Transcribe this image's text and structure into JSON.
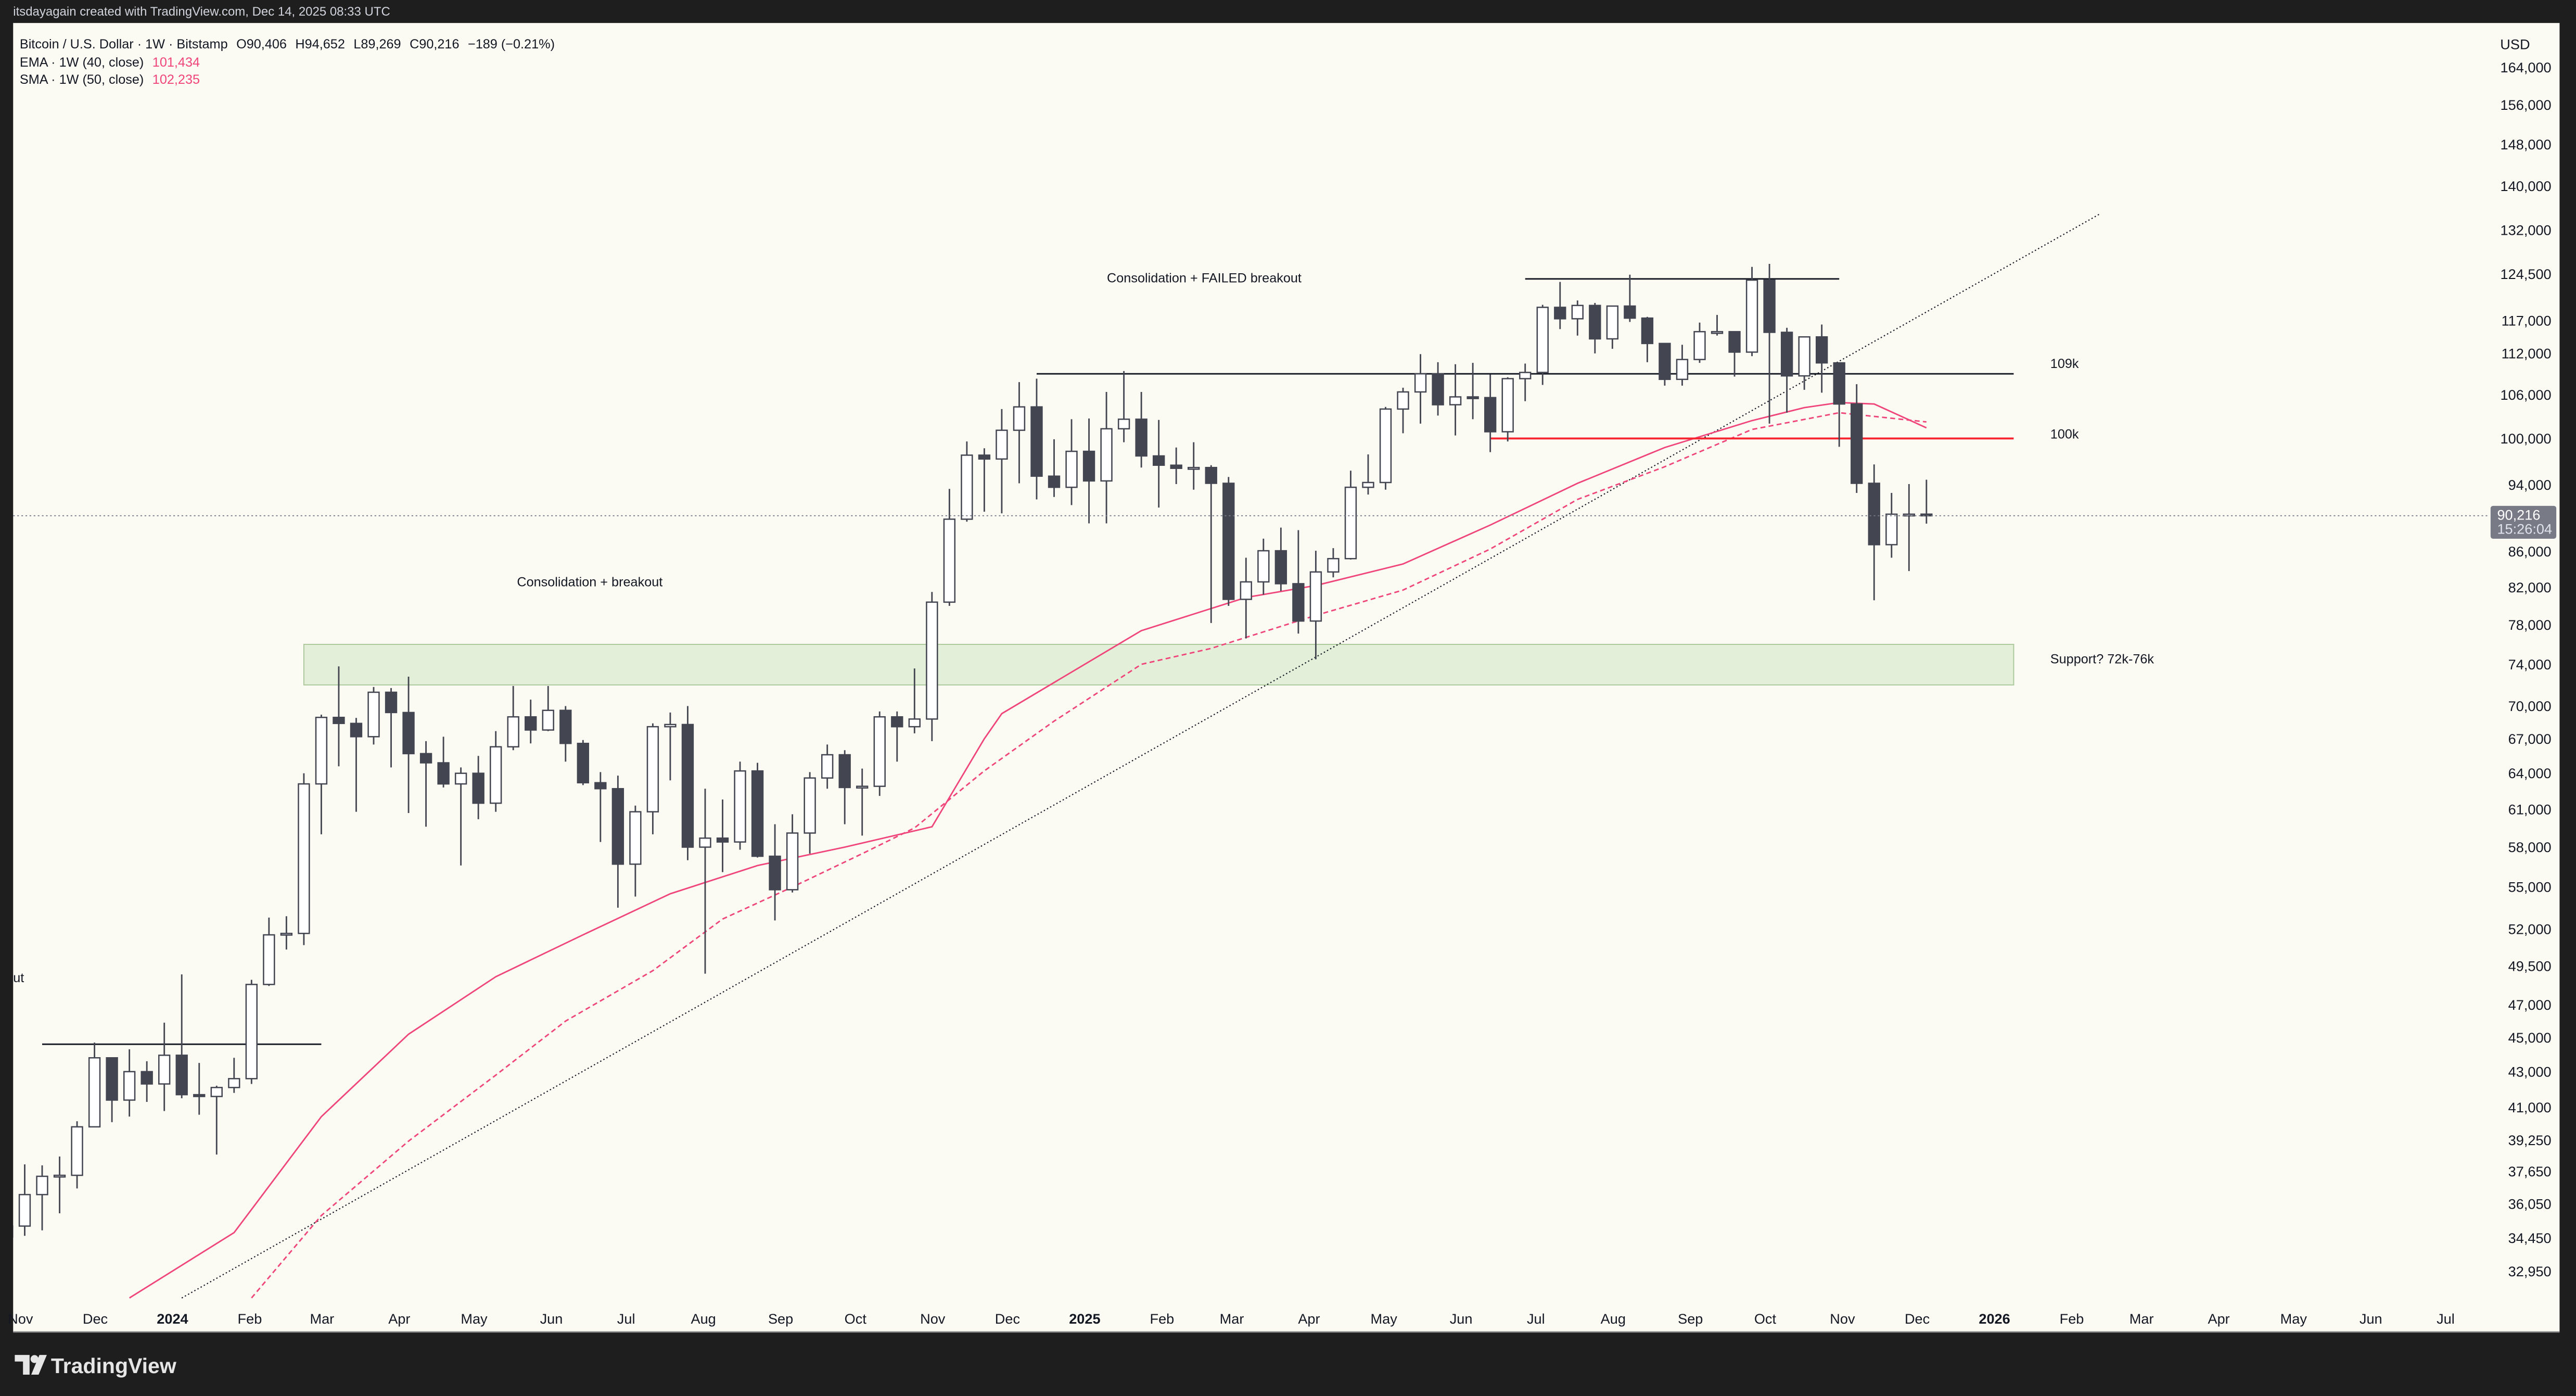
{
  "topbar": {
    "credit": "itsdayagain created with TradingView.com, Dec 14, 2025 08:33 UTC"
  },
  "legend": {
    "symbol": "Bitcoin / U.S. Dollar · 1W · Bitstamp",
    "open": "O90,406",
    "high": "H94,652",
    "low": "L89,269",
    "close": "C90,216",
    "change": "−189 (−0.21%)",
    "ema_label": "EMA · 1W (40, close)",
    "ema_value": "101,434",
    "sma_label": "SMA · 1W (50, close)",
    "sma_value": "102,235"
  },
  "price_axis": {
    "currency": "USD",
    "scale": "log",
    "ticks": [
      "164,000",
      "156,000",
      "148,000",
      "140,000",
      "132,000",
      "124,500",
      "117,000",
      "112,000",
      "106,000",
      "100,000",
      "94,000",
      "86,000",
      "82,000",
      "78,000",
      "74,000",
      "70,000",
      "67,000",
      "64,000",
      "61,000",
      "58,000",
      "55,000",
      "52,000",
      "49,500",
      "47,000",
      "45,000",
      "43,000",
      "41,000",
      "39,250",
      "37,650",
      "36,050",
      "34,450",
      "32,950"
    ],
    "last_price": "90,216",
    "countdown": "15:26:04"
  },
  "time_axis": [
    {
      "label": "Nov",
      "date": "2023-11-01"
    },
    {
      "label": "Dec",
      "date": "2023-12-01"
    },
    {
      "label": "2024",
      "date": "2024-01-01",
      "bold": true
    },
    {
      "label": "Feb",
      "date": "2024-02-01"
    },
    {
      "label": "Mar",
      "date": "2024-03-01"
    },
    {
      "label": "Apr",
      "date": "2024-04-01"
    },
    {
      "label": "May",
      "date": "2024-05-01"
    },
    {
      "label": "Jun",
      "date": "2024-06-01"
    },
    {
      "label": "Jul",
      "date": "2024-07-01"
    },
    {
      "label": "Aug",
      "date": "2024-08-01"
    },
    {
      "label": "Sep",
      "date": "2024-09-01"
    },
    {
      "label": "Oct",
      "date": "2024-10-01"
    },
    {
      "label": "Nov",
      "date": "2024-11-01"
    },
    {
      "label": "Dec",
      "date": "2024-12-01"
    },
    {
      "label": "2025",
      "date": "2025-01-01",
      "bold": true
    },
    {
      "label": "Feb",
      "date": "2025-02-01"
    },
    {
      "label": "Mar",
      "date": "2025-03-01"
    },
    {
      "label": "Apr",
      "date": "2025-04-01"
    },
    {
      "label": "May",
      "date": "2025-05-01"
    },
    {
      "label": "Jun",
      "date": "2025-06-01"
    },
    {
      "label": "Jul",
      "date": "2025-07-01"
    },
    {
      "label": "Aug",
      "date": "2025-08-01"
    },
    {
      "label": "Sep",
      "date": "2025-09-01"
    },
    {
      "label": "Oct",
      "date": "2025-10-01"
    },
    {
      "label": "Nov",
      "date": "2025-11-01"
    },
    {
      "label": "Dec",
      "date": "2025-12-01"
    },
    {
      "label": "2026",
      "date": "2026-01-01",
      "bold": true
    },
    {
      "label": "Feb",
      "date": "2026-02-01"
    },
    {
      "label": "Mar",
      "date": "2026-03-01"
    },
    {
      "label": "Apr",
      "date": "2026-04-01"
    },
    {
      "label": "May",
      "date": "2026-05-01"
    },
    {
      "label": "Jun",
      "date": "2026-06-01"
    },
    {
      "label": "Jul",
      "date": "2026-07-01"
    }
  ],
  "annotations": {
    "consolidation_failed": "Consolidation + FAILED breakout",
    "consolidation_breakout": "Consolidation + breakout",
    "cut_label": "ut",
    "level_109k": "109k",
    "level_100k": "100k",
    "support": "Support? 72k-76k"
  },
  "footer": {
    "logo_text": "TradingView"
  },
  "colors": {
    "background": "#fbfaf3",
    "frame": "#1e1e1e",
    "candle_dark": "#434651",
    "candle_light": "#ffffff",
    "ma": "#f0457a",
    "red_level": "#f7252f",
    "support_fill": "#e3efd8",
    "support_stroke": "#aac79a",
    "last_price_tag": "#787b86"
  },
  "chart_data": {
    "type": "candlestick",
    "interval": "1W",
    "yscale": "log",
    "ylim": [
      32000,
      170000
    ],
    "candles": [
      [
        "2023-10-30",
        34500,
        35950,
        34100,
        35000
      ],
      [
        "2023-11-06",
        35000,
        38000,
        34550,
        36500
      ],
      [
        "2023-11-13",
        36500,
        37950,
        34800,
        37400
      ],
      [
        "2023-11-20",
        37400,
        38400,
        35600,
        37450
      ],
      [
        "2023-11-27",
        37450,
        40250,
        36800,
        39950
      ],
      [
        "2023-12-04",
        39950,
        44700,
        39950,
        43800
      ],
      [
        "2023-12-11",
        43800,
        43800,
        40200,
        41400
      ],
      [
        "2023-12-18",
        41400,
        44300,
        40500,
        43000
      ],
      [
        "2023-12-25",
        43000,
        43600,
        41300,
        42300
      ],
      [
        "2024-01-01",
        42300,
        45900,
        40800,
        43950
      ],
      [
        "2024-01-08",
        43950,
        48950,
        41500,
        41700
      ],
      [
        "2024-01-15",
        41700,
        43500,
        40600,
        41600
      ],
      [
        "2024-01-22",
        41600,
        42200,
        38500,
        42100
      ],
      [
        "2024-01-29",
        42100,
        43800,
        41800,
        42600
      ],
      [
        "2024-02-05",
        42600,
        48600,
        42300,
        48300
      ],
      [
        "2024-02-12",
        48300,
        52800,
        48200,
        51600
      ],
      [
        "2024-02-19",
        51600,
        52900,
        50600,
        51700
      ],
      [
        "2024-02-26",
        51700,
        64000,
        50900,
        63100
      ],
      [
        "2024-03-04",
        63100,
        69200,
        59000,
        68950
      ],
      [
        "2024-03-11",
        68950,
        73800,
        64600,
        68400
      ],
      [
        "2024-03-18",
        68400,
        68900,
        60800,
        67200
      ],
      [
        "2024-03-25",
        67200,
        71800,
        66500,
        71300
      ],
      [
        "2024-04-01",
        71300,
        71700,
        64500,
        69400
      ],
      [
        "2024-04-08",
        69400,
        72800,
        60700,
        65700
      ],
      [
        "2024-04-15",
        65700,
        66800,
        59600,
        64900
      ],
      [
        "2024-04-22",
        64900,
        67200,
        62800,
        63100
      ],
      [
        "2024-04-29",
        63100,
        64500,
        56600,
        64000
      ],
      [
        "2024-05-06",
        64000,
        65500,
        60200,
        61500
      ],
      [
        "2024-05-13",
        61500,
        67700,
        60800,
        66300
      ],
      [
        "2024-05-20",
        66300,
        71900,
        66000,
        69000
      ],
      [
        "2024-05-27",
        69000,
        70600,
        66600,
        67800
      ],
      [
        "2024-06-03",
        67800,
        71900,
        67700,
        69600
      ],
      [
        "2024-06-10",
        69600,
        70000,
        65000,
        66600
      ],
      [
        "2024-06-17",
        66600,
        66900,
        63000,
        63200
      ],
      [
        "2024-06-24",
        63200,
        64100,
        58400,
        62700
      ],
      [
        "2024-07-01",
        62700,
        63800,
        53500,
        56700
      ],
      [
        "2024-07-08",
        56700,
        61300,
        54300,
        60800
      ],
      [
        "2024-07-15",
        60800,
        68400,
        59000,
        68100
      ],
      [
        "2024-07-22",
        68100,
        69400,
        63400,
        68300
      ],
      [
        "2024-07-29",
        68300,
        70000,
        57000,
        58000
      ],
      [
        "2024-08-05",
        58000,
        62700,
        49000,
        58700
      ],
      [
        "2024-08-12",
        58700,
        61800,
        56100,
        58400
      ],
      [
        "2024-08-19",
        58400,
        65000,
        57800,
        64200
      ],
      [
        "2024-08-26",
        64200,
        64900,
        57200,
        57300
      ],
      [
        "2024-09-02",
        57300,
        59800,
        52600,
        54800
      ],
      [
        "2024-09-09",
        54800,
        60600,
        54600,
        59100
      ],
      [
        "2024-09-16",
        59100,
        64100,
        57500,
        63600
      ],
      [
        "2024-09-23",
        63600,
        66500,
        62700,
        65600
      ],
      [
        "2024-09-30",
        65600,
        66000,
        59800,
        62800
      ],
      [
        "2024-10-07",
        62800,
        64400,
        58900,
        62900
      ],
      [
        "2024-10-14",
        62900,
        69500,
        62100,
        69000
      ],
      [
        "2024-10-21",
        69000,
        69500,
        65000,
        68100
      ],
      [
        "2024-10-28",
        68100,
        73600,
        67500,
        68800
      ],
      [
        "2024-11-04",
        68800,
        81500,
        66800,
        80400
      ],
      [
        "2024-11-11",
        80400,
        93500,
        80000,
        89800
      ],
      [
        "2024-11-18",
        89800,
        99600,
        89500,
        97800
      ],
      [
        "2024-11-25",
        97800,
        98700,
        90700,
        97300
      ],
      [
        "2024-12-02",
        97300,
        104000,
        90500,
        101100
      ],
      [
        "2024-12-09",
        101100,
        107800,
        94200,
        104300
      ],
      [
        "2024-12-16",
        104300,
        108300,
        92200,
        95100
      ],
      [
        "2024-12-23",
        95100,
        99900,
        92500,
        93700
      ],
      [
        "2024-12-30",
        93700,
        102600,
        91500,
        98300
      ],
      [
        "2025-01-06",
        98300,
        102700,
        89300,
        94500
      ],
      [
        "2025-01-13",
        94500,
        106400,
        89300,
        101300
      ],
      [
        "2025-01-20",
        101300,
        109400,
        99500,
        102600
      ],
      [
        "2025-01-27",
        102600,
        106400,
        96200,
        97700
      ],
      [
        "2025-02-03",
        97700,
        102500,
        91200,
        96500
      ],
      [
        "2025-02-10",
        96500,
        98800,
        94100,
        96100
      ],
      [
        "2025-02-17",
        96100,
        99500,
        93400,
        96200
      ],
      [
        "2025-02-24",
        96200,
        96500,
        78200,
        94200
      ],
      [
        "2025-03-03",
        94200,
        95000,
        80000,
        80700
      ],
      [
        "2025-03-10",
        80700,
        85300,
        76600,
        82600
      ],
      [
        "2025-03-17",
        82600,
        87500,
        81200,
        86100
      ],
      [
        "2025-03-24",
        86100,
        88800,
        81600,
        82400
      ],
      [
        "2025-03-31",
        82400,
        88500,
        77100,
        78400
      ],
      [
        "2025-04-07",
        78400,
        86100,
        74500,
        83700
      ],
      [
        "2025-04-14",
        83700,
        86400,
        83100,
        85200
      ],
      [
        "2025-04-21",
        85200,
        95800,
        85100,
        93700
      ],
      [
        "2025-04-28",
        93700,
        97900,
        92800,
        94300
      ],
      [
        "2025-05-05",
        94300,
        104300,
        93400,
        104000
      ],
      [
        "2025-05-12",
        104000,
        107000,
        100700,
        106400
      ],
      [
        "2025-05-19",
        106400,
        111900,
        102000,
        109000
      ],
      [
        "2025-05-26",
        109000,
        110700,
        103100,
        104600
      ],
      [
        "2025-06-02",
        104600,
        110400,
        100400,
        105700
      ],
      [
        "2025-06-09",
        105700,
        110600,
        102600,
        105600
      ],
      [
        "2025-06-16",
        105600,
        108900,
        98200,
        100900
      ],
      [
        "2025-06-23",
        100900,
        108500,
        99600,
        108300
      ],
      [
        "2025-06-30",
        108300,
        110500,
        105100,
        109200
      ],
      [
        "2025-07-07",
        109200,
        119500,
        107400,
        119100
      ],
      [
        "2025-07-14",
        119100,
        123200,
        115700,
        117300
      ],
      [
        "2025-07-21",
        117300,
        120200,
        114700,
        119400
      ],
      [
        "2025-07-28",
        119400,
        119800,
        112000,
        114200
      ],
      [
        "2025-08-04",
        114200,
        119300,
        112700,
        119300
      ],
      [
        "2025-08-11",
        119300,
        124400,
        116800,
        117400
      ],
      [
        "2025-08-18",
        117400,
        117600,
        110700,
        113500
      ],
      [
        "2025-08-25",
        113500,
        113500,
        107300,
        108200
      ],
      [
        "2025-09-01",
        108200,
        113300,
        107300,
        111100
      ],
      [
        "2025-09-08",
        111100,
        116700,
        110600,
        115300
      ],
      [
        "2025-09-15",
        115300,
        117900,
        114700,
        115300
      ],
      [
        "2025-09-22",
        115300,
        115400,
        108600,
        112200
      ],
      [
        "2025-09-29",
        112200,
        125700,
        111600,
        123500
      ],
      [
        "2025-10-06",
        123500,
        126200,
        102000,
        115200
      ],
      [
        "2025-10-13",
        115200,
        115900,
        103500,
        108700
      ],
      [
        "2025-10-20",
        108700,
        114000,
        106700,
        114500
      ],
      [
        "2025-10-27",
        114500,
        116400,
        106300,
        110600
      ],
      [
        "2025-11-03",
        110600,
        110600,
        98900,
        104700
      ],
      [
        "2025-11-10",
        104700,
        107500,
        93000,
        94200
      ],
      [
        "2025-11-17",
        94200,
        96600,
        80600,
        86800
      ],
      [
        "2025-11-24",
        86800,
        93000,
        85300,
        90400
      ],
      [
        "2025-12-01",
        90400,
        94100,
        83800,
        90400
      ],
      [
        "2025-12-08",
        90406,
        94652,
        89269,
        90216
      ]
    ],
    "ema_40": [
      [
        "2023-12-18",
        31800
      ],
      [
        "2024-01-29",
        34700
      ],
      [
        "2024-03-04",
        40500
      ],
      [
        "2024-04-08",
        45200
      ],
      [
        "2024-05-13",
        48800
      ],
      [
        "2024-06-17",
        51600
      ],
      [
        "2024-07-22",
        54500
      ],
      [
        "2024-08-26",
        56600
      ],
      [
        "2024-09-30",
        58000
      ],
      [
        "2024-11-04",
        59600
      ],
      [
        "2024-11-25",
        67000
      ],
      [
        "2024-12-02",
        69300
      ],
      [
        "2025-01-27",
        77400
      ],
      [
        "2025-03-10",
        80900
      ],
      [
        "2025-04-07",
        82200
      ],
      [
        "2025-05-12",
        84600
      ],
      [
        "2025-06-16",
        89100
      ],
      [
        "2025-07-21",
        94200
      ],
      [
        "2025-08-25",
        98800
      ],
      [
        "2025-09-29",
        102400
      ],
      [
        "2025-10-20",
        104200
      ],
      [
        "2025-11-03",
        104900
      ],
      [
        "2025-11-17",
        104700
      ],
      [
        "2025-12-08",
        101434
      ]
    ],
    "sma_50": [
      [
        "2024-02-05",
        31800
      ],
      [
        "2024-03-04",
        35500
      ],
      [
        "2024-04-08",
        39200
      ],
      [
        "2024-05-13",
        42800
      ],
      [
        "2024-06-10",
        46000
      ],
      [
        "2024-07-15",
        49200
      ],
      [
        "2024-08-12",
        52700
      ],
      [
        "2024-09-09",
        55000
      ],
      [
        "2024-10-07",
        57500
      ],
      [
        "2024-10-28",
        59500
      ],
      [
        "2024-11-25",
        64200
      ],
      [
        "2024-12-23",
        68600
      ],
      [
        "2025-01-27",
        74000
      ],
      [
        "2025-02-24",
        75600
      ],
      [
        "2025-04-07",
        79000
      ],
      [
        "2025-05-12",
        81700
      ],
      [
        "2025-06-16",
        86300
      ],
      [
        "2025-07-21",
        92200
      ],
      [
        "2025-08-25",
        96300
      ],
      [
        "2025-09-29",
        101200
      ],
      [
        "2025-11-03",
        103500
      ],
      [
        "2025-12-08",
        102235
      ]
    ],
    "trendline": [
      [
        "2024-01-08",
        31800
      ],
      [
        "2026-02-16",
        135000
      ]
    ],
    "horizontal_lines": [
      {
        "price": 123700,
        "from": "2025-06-30",
        "to": "2025-11-03",
        "color": "#131722"
      },
      {
        "price": 109000,
        "from": "2024-12-16",
        "to": "2026-01-12",
        "color": "#131722"
      },
      {
        "price": 100000,
        "from": "2025-06-16",
        "to": "2026-01-12",
        "color": "#f7252f"
      },
      {
        "price": 44600,
        "from": "2023-11-13",
        "to": "2024-03-04",
        "color": "#131722"
      }
    ],
    "support_zone": {
      "low": 72000,
      "high": 76000,
      "from": "2024-02-26",
      "to": "2026-01-12"
    },
    "last_price": 90216
  }
}
